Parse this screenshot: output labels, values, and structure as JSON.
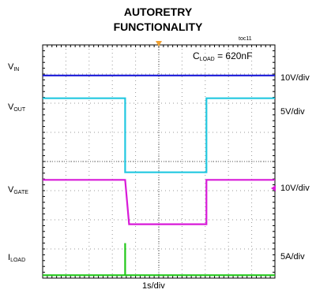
{
  "chart_data": {
    "type": "line",
    "title_line1": "AUTORETRY",
    "title_line2": "FUNCTIONALITY",
    "figure_id": "toc11",
    "annotation": {
      "main": "C",
      "sub": "LOAD",
      "rest": " = 620nF"
    },
    "xlabel": "1s/div",
    "time_divisions": 10,
    "vertical_divisions": 8,
    "trigger_marker_color": "#f0a030",
    "series": [
      {
        "name": "V_IN",
        "label_main": "V",
        "label_sub": "IN",
        "scale": "10V/div",
        "color": "#1a1ad8",
        "high_div": 6.95,
        "low_div": 6.95,
        "x": [
          0,
          10
        ],
        "y_div": [
          6.95,
          6.95
        ]
      },
      {
        "name": "V_OUT",
        "label_main": "V",
        "label_sub": "OUT",
        "scale": "5V/div",
        "color": "#22c8e0",
        "x": [
          0,
          3.55,
          3.55,
          7.05,
          7.05,
          10
        ],
        "y_div": [
          6.17,
          6.17,
          3.63,
          3.63,
          6.17,
          6.17
        ]
      },
      {
        "name": "V_GATE",
        "label_main": "V",
        "label_sub": "GATE",
        "scale": "10V/div",
        "color": "#d81ad8",
        "x": [
          0,
          3.55,
          3.72,
          7.05,
          7.05,
          10
        ],
        "y_div": [
          3.37,
          3.37,
          1.85,
          1.85,
          3.37,
          3.37
        ],
        "ground_marker_div": 3.08
      },
      {
        "name": "I_LOAD",
        "label_main": "I",
        "label_sub": "LOAD",
        "scale": "5A/div",
        "color": "#22c81a",
        "x": [
          0,
          3.55,
          3.55,
          3.55,
          10
        ],
        "y_div": [
          0.1,
          0.1,
          1.2,
          0.1,
          0.1
        ]
      }
    ]
  }
}
